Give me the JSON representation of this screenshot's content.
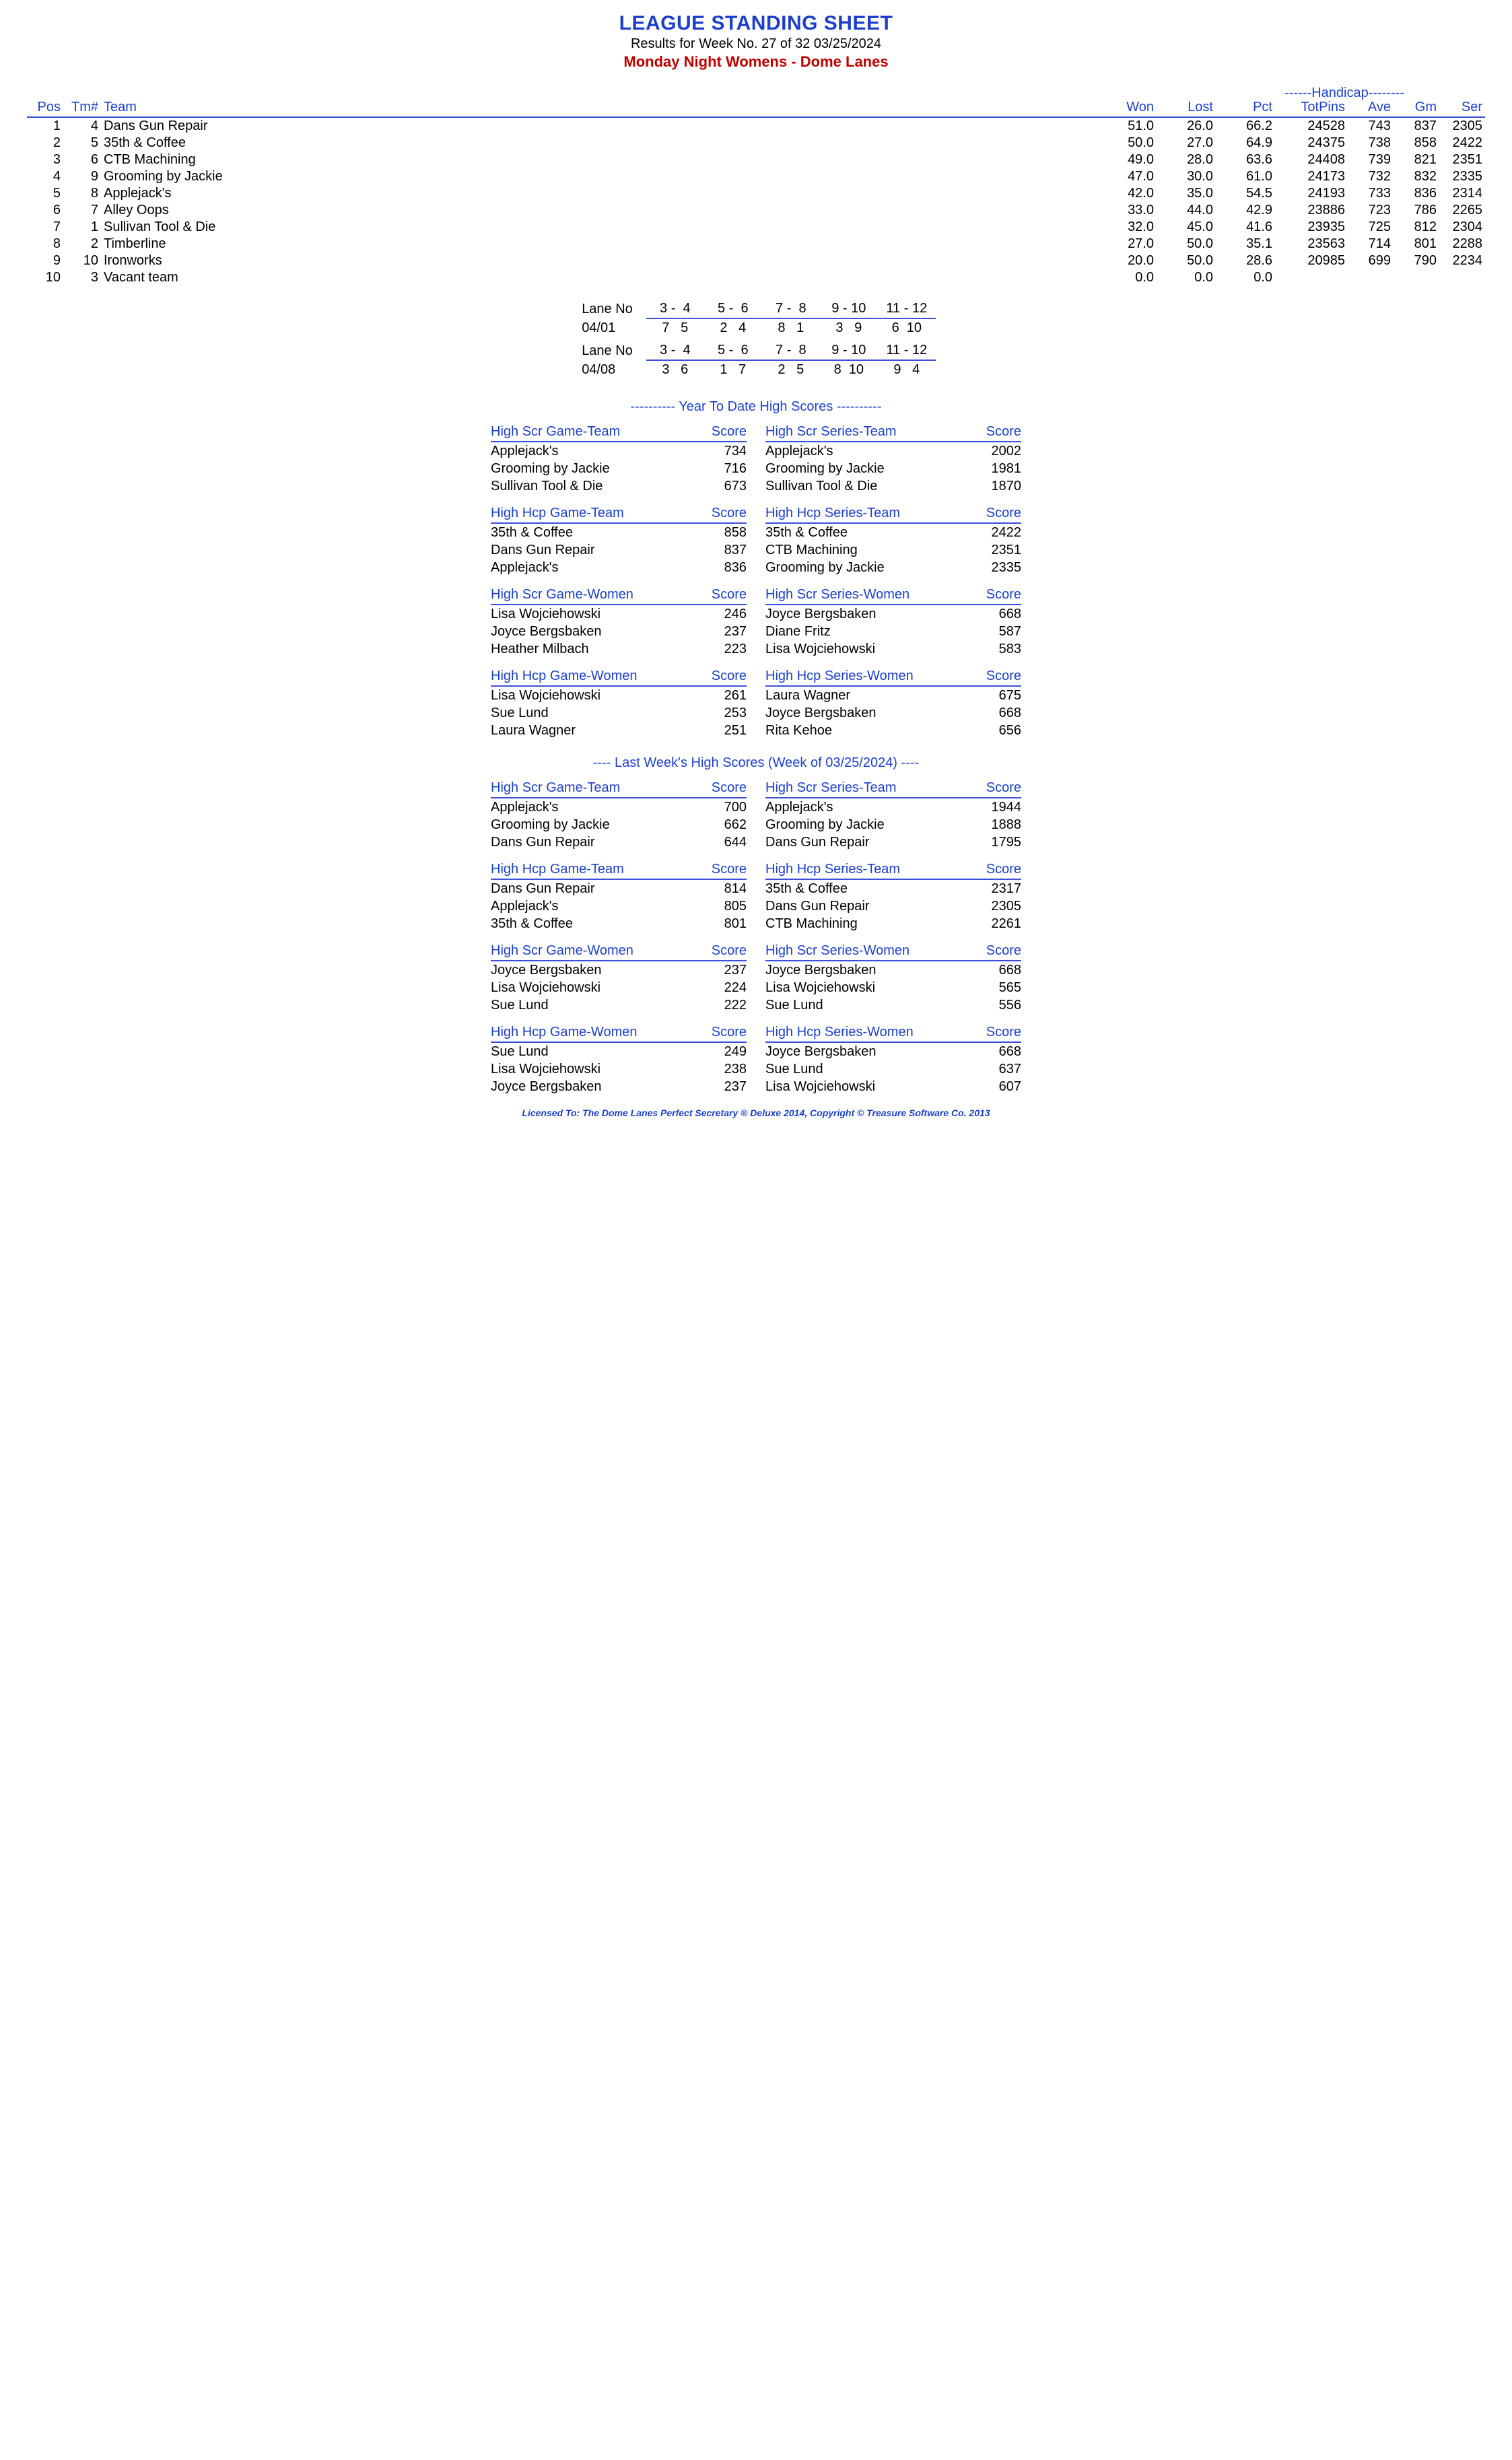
{
  "header": {
    "title": "LEAGUE STANDING SHEET",
    "subtitle": "Results for Week No. 27 of 32    03/25/2024",
    "league": "Monday Night Womens - Dome Lanes"
  },
  "handicap_label": "------Handicap--------",
  "standings": {
    "columns": [
      "Pos",
      "Tm#",
      "Team",
      "Won",
      "Lost",
      "Pct",
      "TotPins",
      "Ave",
      "Gm",
      "Ser"
    ],
    "rows": [
      [
        "1",
        "4",
        "Dans Gun Repair",
        "51.0",
        "26.0",
        "66.2",
        "24528",
        "743",
        "837",
        "2305"
      ],
      [
        "2",
        "5",
        "35th & Coffee",
        "50.0",
        "27.0",
        "64.9",
        "24375",
        "738",
        "858",
        "2422"
      ],
      [
        "3",
        "6",
        "CTB Machining",
        "49.0",
        "28.0",
        "63.6",
        "24408",
        "739",
        "821",
        "2351"
      ],
      [
        "4",
        "9",
        "Grooming by Jackie",
        "47.0",
        "30.0",
        "61.0",
        "24173",
        "732",
        "832",
        "2335"
      ],
      [
        "5",
        "8",
        "Applejack's",
        "42.0",
        "35.0",
        "54.5",
        "24193",
        "733",
        "836",
        "2314"
      ],
      [
        "6",
        "7",
        "Alley Oops",
        "33.0",
        "44.0",
        "42.9",
        "23886",
        "723",
        "786",
        "2265"
      ],
      [
        "7",
        "1",
        "Sullivan Tool & Die",
        "32.0",
        "45.0",
        "41.6",
        "23935",
        "725",
        "812",
        "2304"
      ],
      [
        "8",
        "2",
        "Timberline",
        "27.0",
        "50.0",
        "35.1",
        "23563",
        "714",
        "801",
        "2288"
      ],
      [
        "9",
        "10",
        "Ironworks",
        "20.0",
        "50.0",
        "28.6",
        "20985",
        "699",
        "790",
        "2234"
      ],
      [
        "10",
        "3",
        "Vacant team",
        "0.0",
        "0.0",
        "0.0",
        "",
        "",
        "",
        ""
      ]
    ]
  },
  "lanes": [
    {
      "label": "Lane No",
      "pairs": [
        "3 -  4",
        "5 -  6",
        "7 -  8",
        "9 - 10",
        "11 - 12"
      ],
      "date": "04/01",
      "assign": [
        "7   5",
        "2   4",
        "8   1",
        "3   9",
        "6  10"
      ]
    },
    {
      "label": "Lane No",
      "pairs": [
        "3 -  4",
        "5 -  6",
        "7 -  8",
        "9 - 10",
        "11 - 12"
      ],
      "date": "04/08",
      "assign": [
        "3   6",
        "1   7",
        "2   5",
        "8  10",
        "9   4"
      ]
    }
  ],
  "ytd_title": "----------  Year To Date High Scores  ----------",
  "lw_title": "----  Last Week's High Scores   (Week of 03/25/2024)  ----",
  "score_label": "Score",
  "ytd": [
    [
      {
        "title": "High Scr Game-Team",
        "rows": [
          [
            "Applejack's",
            "734"
          ],
          [
            "Grooming by Jackie",
            "716"
          ],
          [
            "Sullivan Tool & Die",
            "673"
          ]
        ]
      },
      {
        "title": "High Scr Series-Team",
        "rows": [
          [
            "Applejack's",
            "2002"
          ],
          [
            "Grooming by Jackie",
            "1981"
          ],
          [
            "Sullivan Tool & Die",
            "1870"
          ]
        ]
      }
    ],
    [
      {
        "title": "High Hcp Game-Team",
        "rows": [
          [
            "35th & Coffee",
            "858"
          ],
          [
            "Dans Gun Repair",
            "837"
          ],
          [
            "Applejack's",
            "836"
          ]
        ]
      },
      {
        "title": "High Hcp Series-Team",
        "rows": [
          [
            "35th & Coffee",
            "2422"
          ],
          [
            "CTB Machining",
            "2351"
          ],
          [
            "Grooming by Jackie",
            "2335"
          ]
        ]
      }
    ],
    [
      {
        "title": "High Scr Game-Women",
        "rows": [
          [
            "Lisa Wojciehowski",
            "246"
          ],
          [
            "Joyce Bergsbaken",
            "237"
          ],
          [
            "Heather Milbach",
            "223"
          ]
        ]
      },
      {
        "title": "High Scr Series-Women",
        "rows": [
          [
            "Joyce Bergsbaken",
            "668"
          ],
          [
            "Diane Fritz",
            "587"
          ],
          [
            "Lisa Wojciehowski",
            "583"
          ]
        ]
      }
    ],
    [
      {
        "title": "High Hcp Game-Women",
        "rows": [
          [
            "Lisa Wojciehowski",
            "261"
          ],
          [
            "Sue Lund",
            "253"
          ],
          [
            "Laura Wagner",
            "251"
          ]
        ]
      },
      {
        "title": "High Hcp Series-Women",
        "rows": [
          [
            "Laura Wagner",
            "675"
          ],
          [
            "Joyce Bergsbaken",
            "668"
          ],
          [
            "Rita Kehoe",
            "656"
          ]
        ]
      }
    ]
  ],
  "lw": [
    [
      {
        "title": "High Scr Game-Team",
        "rows": [
          [
            "Applejack's",
            "700"
          ],
          [
            "Grooming by Jackie",
            "662"
          ],
          [
            "Dans Gun Repair",
            "644"
          ]
        ]
      },
      {
        "title": "High Scr Series-Team",
        "rows": [
          [
            "Applejack's",
            "1944"
          ],
          [
            "Grooming by Jackie",
            "1888"
          ],
          [
            "Dans Gun Repair",
            "1795"
          ]
        ]
      }
    ],
    [
      {
        "title": "High Hcp Game-Team",
        "rows": [
          [
            "Dans Gun Repair",
            "814"
          ],
          [
            "Applejack's",
            "805"
          ],
          [
            "35th & Coffee",
            "801"
          ]
        ]
      },
      {
        "title": "High Hcp Series-Team",
        "rows": [
          [
            "35th & Coffee",
            "2317"
          ],
          [
            "Dans Gun Repair",
            "2305"
          ],
          [
            "CTB Machining",
            "2261"
          ]
        ]
      }
    ],
    [
      {
        "title": "High Scr Game-Women",
        "rows": [
          [
            "Joyce Bergsbaken",
            "237"
          ],
          [
            "Lisa Wojciehowski",
            "224"
          ],
          [
            "Sue Lund",
            "222"
          ]
        ]
      },
      {
        "title": "High Scr Series-Women",
        "rows": [
          [
            "Joyce Bergsbaken",
            "668"
          ],
          [
            "Lisa Wojciehowski",
            "565"
          ],
          [
            "Sue Lund",
            "556"
          ]
        ]
      }
    ],
    [
      {
        "title": "High Hcp Game-Women",
        "rows": [
          [
            "Sue Lund",
            "249"
          ],
          [
            "Lisa Wojciehowski",
            "238"
          ],
          [
            "Joyce Bergsbaken",
            "237"
          ]
        ]
      },
      {
        "title": "High Hcp Series-Women",
        "rows": [
          [
            "Joyce Bergsbaken",
            "668"
          ],
          [
            "Sue Lund",
            "637"
          ],
          [
            "Lisa Wojciehowski",
            "607"
          ]
        ]
      }
    ]
  ],
  "footer": "Licensed To: The Dome Lanes    Perfect Secretary ® Deluxe  2014, Copyright © Treasure Software Co. 2013"
}
